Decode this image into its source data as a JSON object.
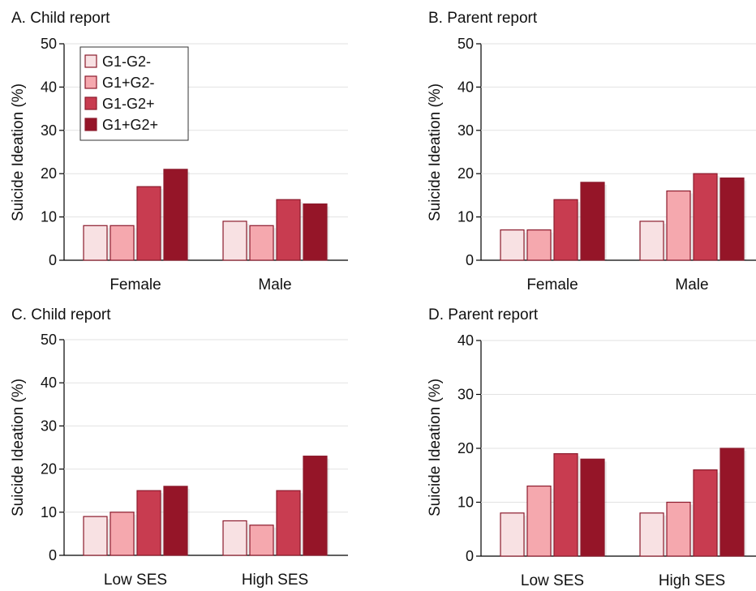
{
  "colors": {
    "series": [
      "#f8e1e3",
      "#f5a8ae",
      "#c83c50",
      "#951528"
    ],
    "stroke": "#8b1a2c"
  },
  "legend": {
    "items": [
      "G1-G2-",
      "G1+G2-",
      "G1-G2+",
      "G1+G2+"
    ]
  },
  "chart_data": [
    {
      "type": "bar",
      "title": "A. Child report",
      "ylabel": "Suicide Ideation (%)",
      "xlabel": "",
      "categories": [
        "Female",
        "Male"
      ],
      "ylim": [
        0,
        50
      ],
      "yticks": [
        0,
        10,
        20,
        30,
        40,
        50
      ],
      "series": [
        {
          "name": "G1-G2-",
          "values": [
            8,
            9
          ]
        },
        {
          "name": "G1+G2-",
          "values": [
            8,
            8
          ]
        },
        {
          "name": "G1-G2+",
          "values": [
            17,
            14
          ]
        },
        {
          "name": "G1+G2+",
          "values": [
            21,
            13
          ]
        }
      ]
    },
    {
      "type": "bar",
      "title": "B. Parent report",
      "ylabel": "Suicide Ideation (%)",
      "xlabel": "",
      "categories": [
        "Female",
        "Male"
      ],
      "ylim": [
        0,
        50
      ],
      "yticks": [
        0,
        10,
        20,
        30,
        40,
        50
      ],
      "series": [
        {
          "name": "G1-G2-",
          "values": [
            7,
            9
          ]
        },
        {
          "name": "G1+G2-",
          "values": [
            7,
            16
          ]
        },
        {
          "name": "G1-G2+",
          "values": [
            14,
            20
          ]
        },
        {
          "name": "G1+G2+",
          "values": [
            18,
            19
          ]
        }
      ]
    },
    {
      "type": "bar",
      "title": "C. Child report",
      "ylabel": "Suicide Ideation (%)",
      "xlabel": "",
      "categories": [
        "Low SES",
        "High SES"
      ],
      "ylim": [
        0,
        50
      ],
      "yticks": [
        0,
        10,
        20,
        30,
        40,
        50
      ],
      "series": [
        {
          "name": "G1-G2-",
          "values": [
            9,
            8
          ]
        },
        {
          "name": "G1+G2-",
          "values": [
            10,
            7
          ]
        },
        {
          "name": "G1-G2+",
          "values": [
            15,
            15
          ]
        },
        {
          "name": "G1+G2+",
          "values": [
            16,
            23
          ]
        }
      ]
    },
    {
      "type": "bar",
      "title": "D. Parent report",
      "ylabel": "Suicide Ideation (%)",
      "xlabel": "",
      "categories": [
        "Low SES",
        "High SES"
      ],
      "ylim": [
        0,
        40
      ],
      "yticks": [
        0,
        10,
        20,
        30,
        40
      ],
      "series": [
        {
          "name": "G1-G2-",
          "values": [
            8,
            8
          ]
        },
        {
          "name": "G1+G2-",
          "values": [
            13,
            10
          ]
        },
        {
          "name": "G1-G2+",
          "values": [
            19,
            16
          ]
        },
        {
          "name": "G1+G2+",
          "values": [
            18,
            20
          ]
        }
      ]
    }
  ]
}
